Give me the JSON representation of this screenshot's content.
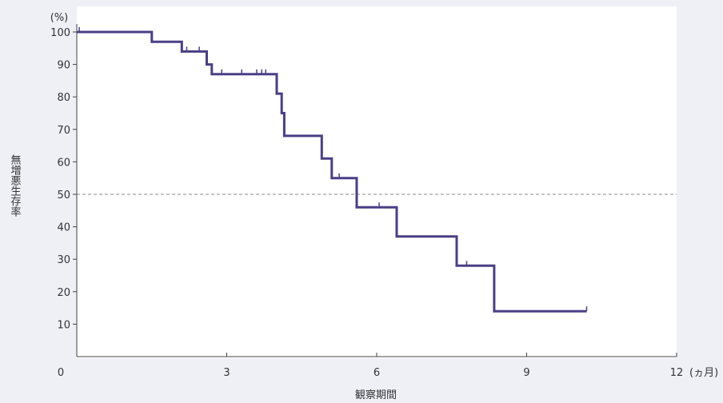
{
  "chart_data": {
    "type": "line",
    "step": true,
    "title": "",
    "xlabel": "観察期間",
    "ylabel": "無増悪生存率",
    "y_unit": "(%)",
    "x_unit": "(ヵ月)",
    "xlim": [
      0,
      12
    ],
    "ylim": [
      0,
      100
    ],
    "x_ticks": [
      0,
      3,
      6,
      9,
      12
    ],
    "x_tick_labels": [
      "0",
      "3",
      "6",
      "9",
      "12"
    ],
    "y_ticks": [
      10,
      20,
      30,
      40,
      50,
      60,
      70,
      80,
      90,
      100
    ],
    "y_tick_labels": [
      "10",
      "20",
      "30",
      "40",
      "50",
      "60",
      "70",
      "80",
      "90",
      "100"
    ],
    "reference_line": {
      "y": 50,
      "style": "dashed"
    },
    "series": [
      {
        "color": "#4a3f86",
        "points": [
          [
            0,
            100
          ],
          [
            1.5,
            100
          ],
          [
            1.5,
            97
          ],
          [
            2.1,
            97
          ],
          [
            2.1,
            94
          ],
          [
            2.6,
            94
          ],
          [
            2.6,
            90
          ],
          [
            2.7,
            90
          ],
          [
            2.7,
            87
          ],
          [
            4.0,
            87
          ],
          [
            4.0,
            81
          ],
          [
            4.1,
            81
          ],
          [
            4.1,
            75
          ],
          [
            4.15,
            75
          ],
          [
            4.15,
            68
          ],
          [
            4.9,
            68
          ],
          [
            4.9,
            61
          ],
          [
            5.1,
            61
          ],
          [
            5.1,
            55
          ],
          [
            5.6,
            55
          ],
          [
            5.6,
            46
          ],
          [
            6.4,
            46
          ],
          [
            6.4,
            37
          ],
          [
            7.6,
            37
          ],
          [
            7.6,
            28
          ],
          [
            8.35,
            28
          ],
          [
            8.35,
            14
          ],
          [
            10.2,
            14
          ]
        ],
        "censor_marks": [
          [
            0.05,
            100
          ],
          [
            2.2,
            94
          ],
          [
            2.45,
            94
          ],
          [
            2.9,
            87
          ],
          [
            3.3,
            87
          ],
          [
            3.6,
            87
          ],
          [
            3.7,
            87
          ],
          [
            3.78,
            87
          ],
          [
            5.25,
            55
          ],
          [
            6.05,
            46
          ],
          [
            7.8,
            28
          ],
          [
            10.2,
            14
          ]
        ]
      }
    ]
  }
}
